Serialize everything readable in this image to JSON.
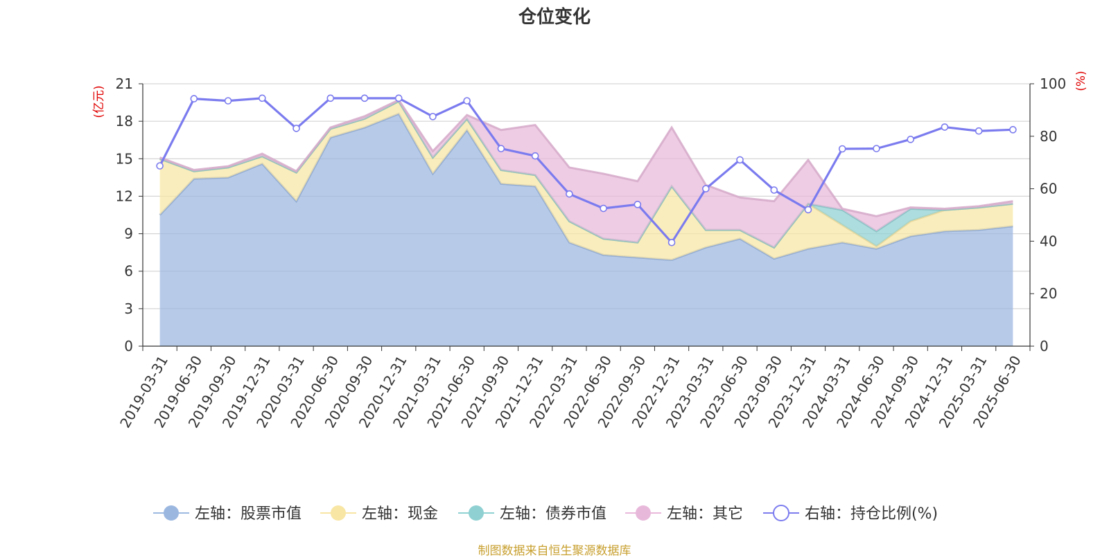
{
  "chart_data": {
    "type": "area",
    "title": "仓位变化",
    "source": "制图数据来自恒生聚源数据库",
    "left_axis": {
      "unit": "(亿元)",
      "min": 0,
      "max": 21,
      "ticks": [
        "0",
        "3",
        "6",
        "9",
        "12",
        "15",
        "18",
        "21"
      ]
    },
    "right_axis": {
      "unit": "(%)",
      "min": 0,
      "max": 100,
      "ticks": [
        "0",
        "20",
        "40",
        "60",
        "80",
        "100"
      ]
    },
    "categories": [
      "2019-03-31",
      "2019-06-30",
      "2019-09-30",
      "2019-12-31",
      "2020-03-31",
      "2020-06-30",
      "2020-09-30",
      "2020-12-31",
      "2021-03-31",
      "2021-06-30",
      "2021-09-30",
      "2021-12-31",
      "2022-03-31",
      "2022-06-30",
      "2022-09-30",
      "2022-12-31",
      "2023-03-31",
      "2023-06-30",
      "2023-09-30",
      "2023-12-31",
      "2024-03-31",
      "2024-06-30",
      "2024-09-30",
      "2024-12-31",
      "2025-03-31",
      "2025-06-30"
    ],
    "stacked_series": [
      {
        "name": "左轴：股票市值",
        "color": "#9bb7e0",
        "values": [
          10.5,
          13.4,
          13.5,
          14.6,
          11.6,
          16.7,
          17.5,
          18.6,
          13.8,
          17.3,
          13.0,
          12.8,
          8.3,
          7.3,
          7.1,
          6.9,
          7.9,
          8.6,
          7.0,
          7.8,
          8.3,
          7.8,
          8.8,
          9.2,
          9.3,
          9.6
        ]
      },
      {
        "name": "左轴：现金",
        "color": "#f8e6a4",
        "values": [
          4.5,
          0.6,
          0.8,
          0.6,
          2.3,
          0.7,
          0.7,
          1.0,
          1.3,
          0.9,
          1.1,
          0.9,
          1.7,
          1.3,
          1.2,
          5.9,
          1.4,
          0.7,
          0.9,
          3.6,
          1.4,
          0.2,
          1.2,
          1.7,
          1.8,
          1.8
        ]
      },
      {
        "name": "左轴：债券市值",
        "color": "#8fd0d2",
        "values": [
          0,
          0,
          0,
          0,
          0,
          0,
          0,
          0,
          0,
          0,
          0,
          0,
          0,
          0,
          0,
          0,
          0,
          0,
          0,
          0,
          1.2,
          1.2,
          1.0,
          0,
          0,
          0
        ]
      },
      {
        "name": "左轴：其它",
        "color": "#e8b8da",
        "values": [
          0.1,
          0.1,
          0.1,
          0.2,
          0.1,
          0.1,
          0.2,
          0.1,
          0.5,
          0.3,
          3.2,
          4.0,
          4.3,
          5.2,
          4.9,
          4.7,
          3.6,
          2.6,
          3.7,
          3.5,
          0.1,
          1.2,
          0.1,
          0.1,
          0.1,
          0.2
        ]
      }
    ],
    "line_series": {
      "name": "右轴：持仓比例(%)",
      "color": "#7b7bef",
      "values": [
        68.7,
        94.3,
        93.5,
        94.5,
        83.0,
        94.5,
        94.5,
        94.5,
        87.5,
        93.5,
        75.3,
        72.5,
        58.0,
        52.5,
        54.0,
        39.5,
        60.0,
        71.0,
        59.5,
        52.0,
        75.2,
        75.3,
        78.8,
        83.5,
        82.0,
        82.5
      ]
    },
    "legend": {
      "position": "bottom",
      "items": [
        "左轴：股票市值",
        "左轴：现金",
        "左轴：债券市值",
        "左轴：其它",
        "右轴：持仓比例(%)"
      ]
    },
    "grid": true
  }
}
